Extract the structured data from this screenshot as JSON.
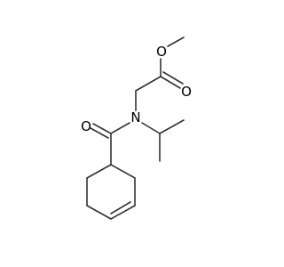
{
  "atoms": [
    {
      "label": "O"
    },
    {
      "label": "O"
    },
    {
      "label": "N"
    },
    {
      "label": "O"
    }
  ]
}
